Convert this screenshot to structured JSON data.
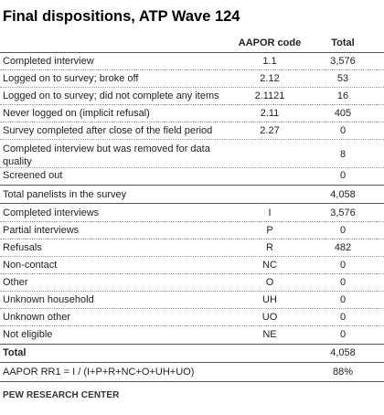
{
  "title": "Final dispositions, ATP Wave 124",
  "columns": {
    "code": "AAPOR code",
    "total": "Total"
  },
  "rows_top": [
    {
      "label": "Completed interview",
      "code": "1.1",
      "total": "3,576"
    },
    {
      "label": "Logged on to survey; broke off",
      "code": "2.12",
      "total": "53"
    },
    {
      "label": "Logged on to survey; did not complete any items",
      "code": "2.1121",
      "total": "16"
    },
    {
      "label": "Never logged on (implicit refusal)",
      "code": "2.11",
      "total": "405"
    },
    {
      "label": "Survey completed after close of the field period",
      "code": "2.27",
      "total": "0"
    },
    {
      "label": "Completed interview but was removed for data quality",
      "code": "",
      "total": "8"
    },
    {
      "label": "Screened out",
      "code": "",
      "total": "0"
    }
  ],
  "panelists_total": {
    "label": "Total panelists in the survey",
    "code": "",
    "total": "4,058"
  },
  "rows_bottom": [
    {
      "label": "Completed interviews",
      "code": "I",
      "total": "3,576"
    },
    {
      "label": "Partial interviews",
      "code": "P",
      "total": "0"
    },
    {
      "label": "Refusals",
      "code": "R",
      "total": "482"
    },
    {
      "label": "Non-contact",
      "code": "NC",
      "total": "0"
    },
    {
      "label": "Other",
      "code": "O",
      "total": "0"
    },
    {
      "label": "Unknown household",
      "code": "UH",
      "total": "0"
    },
    {
      "label": "Unknown other",
      "code": "UO",
      "total": "0"
    },
    {
      "label": "Not eligible",
      "code": "NE",
      "total": "0"
    }
  ],
  "grand_total": {
    "label": "Total",
    "code": "",
    "total": "4,058"
  },
  "rate": {
    "label": "AAPOR RR1 = I / (I+P+R+NC+O+UH+UO)",
    "code": "",
    "total": "88%"
  },
  "footer": "PEW RESEARCH CENTER"
}
